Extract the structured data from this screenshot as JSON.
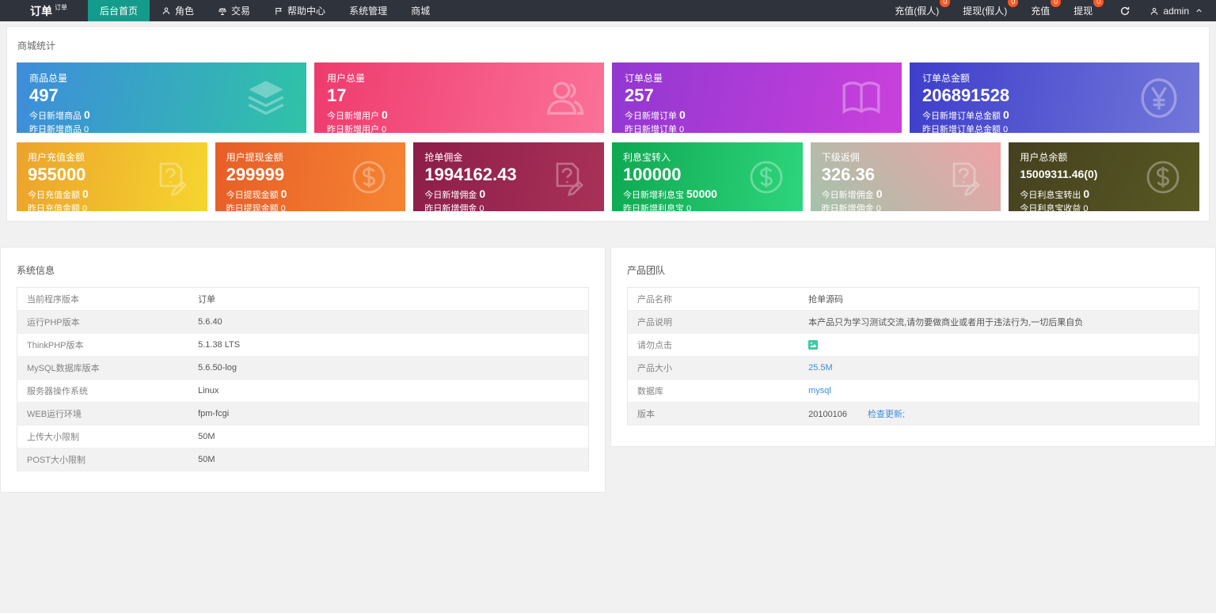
{
  "navbar": {
    "logo": {
      "title": "订单",
      "sup": "订单"
    },
    "menu": [
      {
        "label": "后台首页",
        "active": true
      },
      {
        "label": "角色",
        "icon": "person-icon"
      },
      {
        "label": "交易",
        "icon": "scales-icon"
      },
      {
        "label": "帮助中心",
        "icon": "flag-icon"
      },
      {
        "label": "系统管理"
      },
      {
        "label": "商城"
      }
    ],
    "badge_items": [
      {
        "label": "充值(假人)",
        "badge": "0"
      },
      {
        "label": "提现(假人)",
        "badge": "0"
      },
      {
        "label": "充值",
        "badge": "0"
      },
      {
        "label": "提现",
        "badge": "0"
      }
    ],
    "user": {
      "name": "admin"
    },
    "colors": {
      "bar_bg": "#2f333c",
      "active_bg": "#149b8b",
      "badge_bg": "#ff5722"
    }
  },
  "stats": {
    "title": "商城统计",
    "row1": [
      {
        "name": "goods-total",
        "label": "商品总量",
        "value": "497",
        "sub1_label": "今日新增商品",
        "sub1_value": "0",
        "sub2_label": "昨日新增商品",
        "sub2_value": "0",
        "icon": "layers-icon",
        "bg": "linear-gradient(100deg,#3e8ddb,#2fc3a7)"
      },
      {
        "name": "user-total",
        "label": "用户总量",
        "value": "17",
        "sub1_label": "今日新增用户",
        "sub1_value": "0",
        "sub2_label": "昨日新增用户",
        "sub2_value": "0",
        "icon": "users-icon",
        "bg": "linear-gradient(100deg,#ee3b6e,#fb7198)"
      },
      {
        "name": "order-total",
        "label": "订单总量",
        "value": "257",
        "sub1_label": "今日新增订单",
        "sub1_value": "0",
        "sub2_label": "昨日新增订单",
        "sub2_value": "0",
        "icon": "book-icon",
        "bg": "linear-gradient(100deg,#9237d1,#ca40dc)"
      },
      {
        "name": "order-amount-total",
        "label": "订单总金额",
        "value": "206891528",
        "sub1_label": "今日新增订单总金额",
        "sub1_value": "0",
        "sub2_label": "昨日新增订单总金额",
        "sub2_value": "0",
        "icon": "yen-circle-icon",
        "bg": "linear-gradient(100deg,#3e3ecb,#7277d9)"
      }
    ],
    "row2": [
      {
        "name": "user-recharge-amount",
        "label": "用户充值金额",
        "value": "955000",
        "sub1_label": "今日充值金额",
        "sub1_value": "0",
        "sub2_label": "昨日充值金额",
        "sub2_value": "0",
        "icon": "doc-question-icon",
        "bg": "linear-gradient(100deg,#eca32c,#f6d52f)"
      },
      {
        "name": "user-withdraw-amount",
        "label": "用户提现金额",
        "value": "299999",
        "sub1_label": "今日提现金额",
        "sub1_value": "0",
        "sub2_label": "昨日提现金额",
        "sub2_value": "0",
        "icon": "dollar-circle-icon",
        "bg": "linear-gradient(100deg,#e75e27,#f68433)"
      },
      {
        "name": "grab-commission",
        "label": "抢单佣金",
        "value": "1994162.43",
        "sub1_label": "今日新增佣金",
        "sub1_value": "0",
        "sub2_label": "昨日新增佣金",
        "sub2_value": "0",
        "icon": "doc-question-icon",
        "bg": "linear-gradient(100deg,#8c1e49,#a93158)"
      },
      {
        "name": "interest-transfer-in",
        "label": "利息宝转入",
        "value": "100000",
        "sub1_label": "今日新增利息宝",
        "sub1_value": "50000",
        "sub2_label": "昨日新增利息宝",
        "sub2_value": "0",
        "icon": "dollar-circle-icon",
        "bg": "linear-gradient(100deg,#0ea851,#2ed57c)"
      },
      {
        "name": "sub-rebate",
        "label": "下级返佣",
        "value": "326.36",
        "sub1_label": "今日新增佣金",
        "sub1_value": "0",
        "sub2_label": "昨日新增佣金",
        "sub2_value": "0",
        "icon": "doc-question-icon",
        "bg": "linear-gradient(45deg,#a4c2ab,#f0a2a6)"
      },
      {
        "name": "user-balance-total",
        "label": "用户总余额",
        "value": "15009311.46(0)",
        "small_value": true,
        "sub1_label": "今日利息宝转出",
        "sub1_value": "0",
        "sub2_label": "今日利息宝收益",
        "sub2_value": "0",
        "icon": "dollar-circle-icon",
        "bg": "linear-gradient(120deg,#45401f,#585923)"
      }
    ]
  },
  "system_info": {
    "title": "系统信息",
    "rows": [
      {
        "label": "当前程序版本",
        "value": "订单"
      },
      {
        "label": "运行PHP版本",
        "value": "5.6.40"
      },
      {
        "label": "ThinkPHP版本",
        "value": "5.1.38 LTS"
      },
      {
        "label": "MySQL数据库版本",
        "value": "5.6.50-log"
      },
      {
        "label": "服务器操作系统",
        "value": "Linux"
      },
      {
        "label": "WEB运行环境",
        "value": "fpm-fcgi"
      },
      {
        "label": "上传大小限制",
        "value": "50M"
      },
      {
        "label": "POST大小限制",
        "value": "50M"
      }
    ]
  },
  "product_team": {
    "title": "产品团队",
    "rows": [
      {
        "label": "产品名称",
        "value": "抢单源码"
      },
      {
        "label": "产品说明",
        "value": "本产品只为学习测试交流,请勿要做商业或者用于违法行为,一切后果自负"
      },
      {
        "label": "请勿点击",
        "icon": "broken-image-icon"
      },
      {
        "label": "产品大小",
        "value": "25.5M",
        "link": true
      },
      {
        "label": "数据库",
        "value": "mysql",
        "link": true
      },
      {
        "label": "版本",
        "value": "20100106",
        "extra_link": "检查更新;"
      }
    ]
  }
}
